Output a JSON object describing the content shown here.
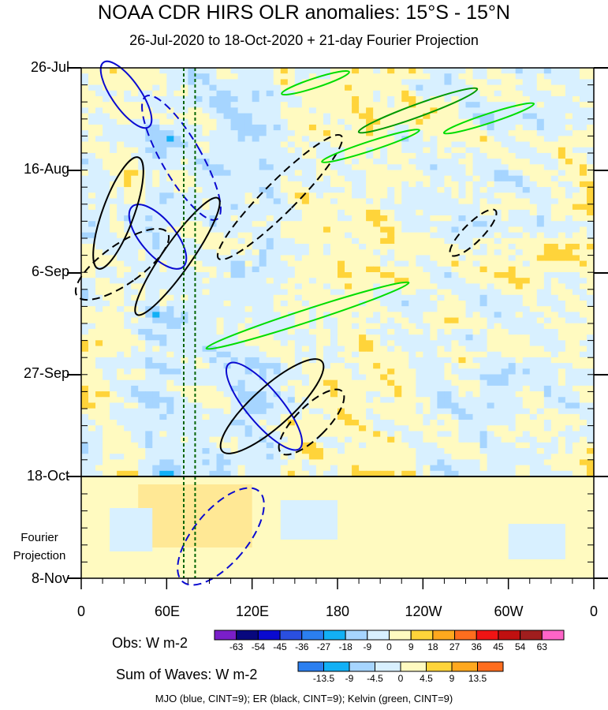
{
  "title": "NOAA CDR HIRS OLR anomalies: 15°S - 15°N",
  "subtitle": "26-Jul-2020 to 18-Oct-2020 + 21-day Fourier Projection",
  "projection_label": [
    "Fourier",
    "Projection"
  ],
  "colorbar_obs": {
    "title": "Obs: W m-2",
    "labels": [
      "-63",
      "-54",
      "-45",
      "-36",
      "-27",
      "-18",
      "-9",
      "0",
      "9",
      "18",
      "27",
      "36",
      "45",
      "54",
      "63"
    ],
    "colors": [
      "#7a1fc9",
      "#08087e",
      "#0a0ad0",
      "#2a4fe0",
      "#2b7ff0",
      "#12b0f5",
      "#a6d5ff",
      "#d8f0ff",
      "#fffac0",
      "#ffd43a",
      "#ffa81e",
      "#ff6d1e",
      "#f01414",
      "#c01010",
      "#a01e1e",
      "#ff64c8"
    ]
  },
  "colorbar_waves": {
    "title": "Sum of Waves: W m-2",
    "labels": [
      "-13.5",
      "-9",
      "-4.5",
      "0",
      "4.5",
      "9",
      "13.5"
    ],
    "colors": [
      "#2b7ff0",
      "#12b0f5",
      "#a6d5ff",
      "#d8f0ff",
      "#fffac0",
      "#ffd43a",
      "#ffa81e",
      "#ff6d1e"
    ]
  },
  "footer": "MJO (blue, CINT=9); ER (black, CINT=9); Kelvin (green, CINT=9)",
  "chart_data": {
    "type": "heatmap",
    "x_ticks": [
      "0",
      "60E",
      "120E",
      "180",
      "120W",
      "60W",
      "0"
    ],
    "x_range": [
      0,
      360
    ],
    "y_ticks": [
      "26-Jul",
      "16-Aug",
      "6-Sep",
      "27-Sep",
      "18-Oct",
      "8-Nov"
    ],
    "y_range": [
      "26-Jul-2020",
      "8-Nov-2020"
    ],
    "observation_end": "18-Oct",
    "reference_longitudes": [
      72,
      80
    ],
    "overlays": [
      {
        "color": "blue",
        "cint": 9
      },
      {
        "color": "black",
        "cint": 9
      },
      {
        "color": "green",
        "cint": 9
      }
    ]
  }
}
